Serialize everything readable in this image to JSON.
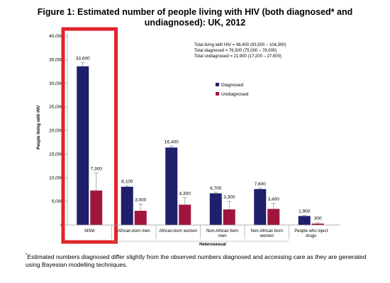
{
  "title": {
    "line1": "Figure 1: Estimated number of people living with HIV (both diagnosed* and",
    "line2": "undiagnosed): UK, 2012"
  },
  "chart_data": {
    "type": "bar",
    "categories": [
      "MSM",
      "African-born men",
      "African-born women",
      "Non-African born men",
      "Non-African born women",
      "People who inject drugs"
    ],
    "category_label_lines": [
      [
        "MSM"
      ],
      [
        "African-born men"
      ],
      [
        "African-born women"
      ],
      [
        "Non-African born",
        "men"
      ],
      [
        "Non-African born",
        "women"
      ],
      [
        "People who inject",
        "drugs"
      ]
    ],
    "series": [
      {
        "name": "Diagnosed",
        "color": "#1f1f6b",
        "values": [
          33600,
          8100,
          16400,
          6700,
          7600,
          1900
        ],
        "labels": [
          "33,600",
          "8,100",
          "16,400",
          "6,700",
          "7,600",
          "1,900"
        ],
        "error_high": [
          34400,
          8300,
          16700,
          6900,
          7800,
          2000
        ]
      },
      {
        "name": "Undiagnosed",
        "color": "#a0153e",
        "values": [
          7300,
          3000,
          4300,
          3300,
          3400,
          300
        ],
        "labels": [
          "7,300",
          "3,000",
          "4,300",
          "3,300",
          "3,400",
          "300"
        ],
        "error_high": [
          11000,
          4400,
          5800,
          5000,
          4600,
          500
        ]
      }
    ],
    "ylabel": "People living with HIV",
    "xlabel": "Heterosexual",
    "ylim": [
      0,
      40000
    ],
    "yticks": [
      0,
      5000,
      10000,
      15000,
      20000,
      25000,
      30000,
      35000,
      40000
    ],
    "ytick_labels": [
      "0",
      "5,000",
      "10,000",
      "15,000",
      "20,000",
      "25,000",
      "30,000",
      "35,000",
      "40,000"
    ],
    "annotations": [
      "Total living with HIV = 98,400 (93,500 – 104,300)",
      "Total diagnosed = 76,500 (75,000 – 78,000)",
      "Total undiagnosed = 21,900 (17,200 – 27,600)"
    ],
    "legend_position": "upper-right",
    "highlight_category": "MSM",
    "highlight_color": "#e0242b"
  },
  "footnote": {
    "marker": "*",
    "text": "Estimated numbers diagnosed differ slightly from the observed numbers diagnosed and accessing care as they are generated using Bayesian modelling techniques."
  }
}
